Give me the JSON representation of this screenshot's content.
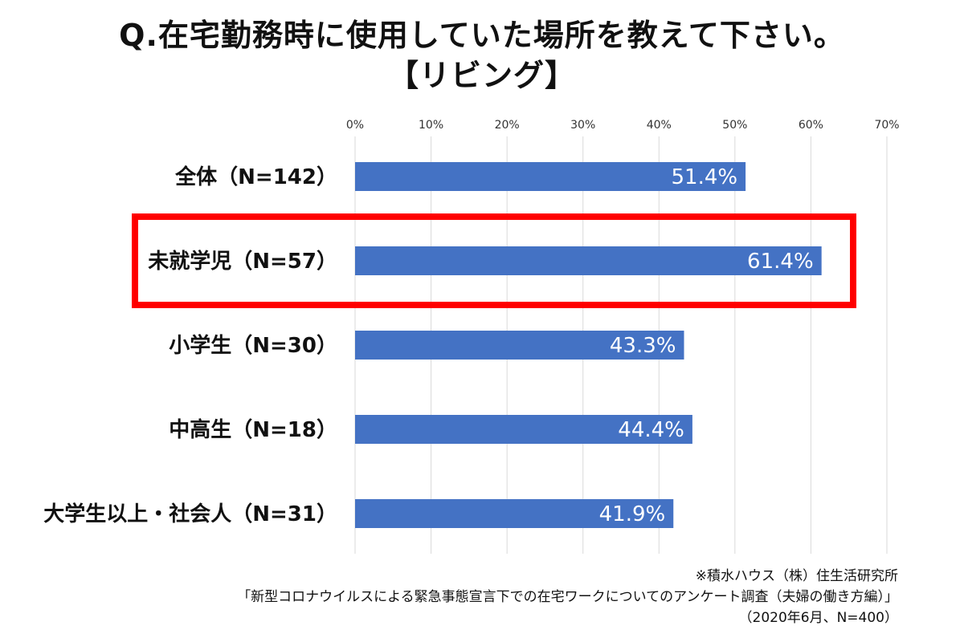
{
  "title": {
    "line1": "Q.在宅勤務時に使用していた場所を教えて下さい。",
    "line2": "【リビング】"
  },
  "chart_data": {
    "type": "bar",
    "orientation": "horizontal",
    "categories": [
      "全体（N=142）",
      "未就学児（N=57）",
      "小学生（N=30）",
      "中高生（N=18）",
      "大学生以上・社会人（N=31）"
    ],
    "values": [
      51.4,
      61.4,
      43.3,
      44.4,
      41.9
    ],
    "value_labels": [
      "51.4%",
      "61.4%",
      "43.3%",
      "44.4%",
      "41.9%"
    ],
    "xlim": [
      0,
      70
    ],
    "ticks": [
      0,
      10,
      20,
      30,
      40,
      50,
      60,
      70
    ],
    "tick_labels": [
      "0%",
      "10%",
      "20%",
      "30%",
      "40%",
      "50%",
      "60%",
      "70%"
    ],
    "x_axis_position": "top",
    "grid": true,
    "highlighted_category_index": 1
  },
  "colors": {
    "bar": "#4472c4",
    "highlight_box": "#ff0000",
    "gridline": "#d9d9d9"
  },
  "source": {
    "line1": "※積水ハウス（株）住生活研究所",
    "line2": "「新型コロナウイルスによる緊急事態宣言下での在宅ワークについてのアンケート調査（夫婦の働き方編）」",
    "line3": "（2020年6月、N=400）"
  }
}
